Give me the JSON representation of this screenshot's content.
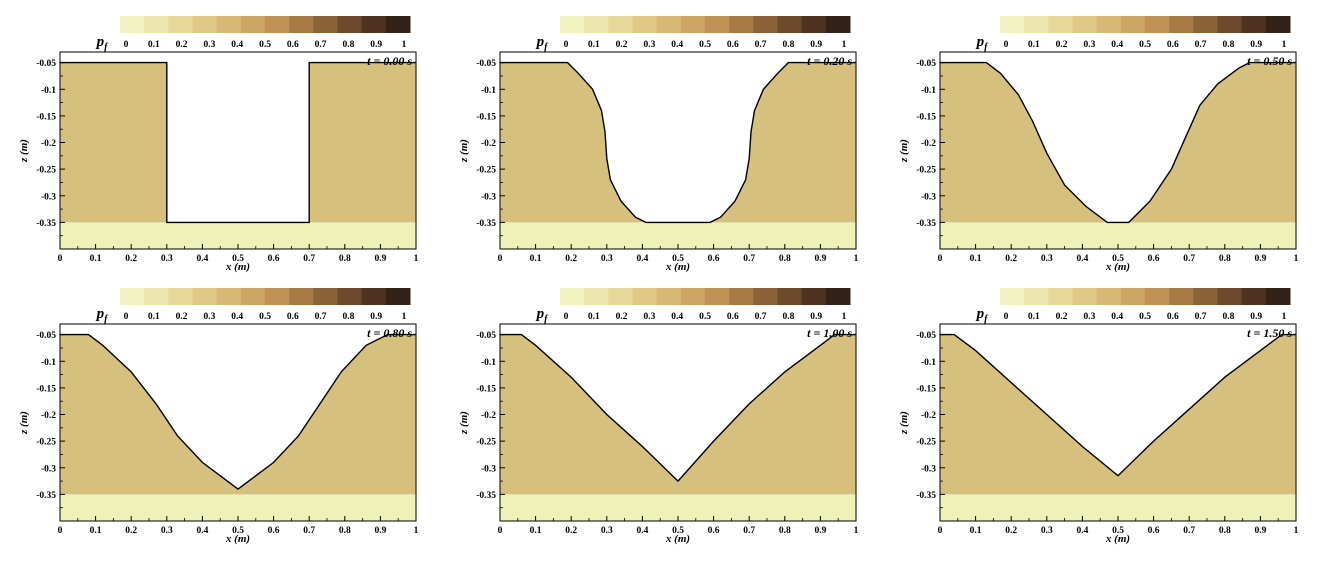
{
  "figure": {
    "colorbar": {
      "label_main": "p",
      "label_sub": "f",
      "ticks": [
        "0",
        "0.1",
        "0.2",
        "0.3",
        "0.4",
        "0.5",
        "0.6",
        "0.7",
        "0.8",
        "0.9",
        "1"
      ],
      "colors": [
        "#f1f4c0",
        "#ede6ae",
        "#e7d79a",
        "#e0c887",
        "#d8b875",
        "#cea664",
        "#c09255",
        "#a77a45",
        "#8c6238",
        "#6d4a2b",
        "#4f3320",
        "#332218"
      ]
    },
    "colors": {
      "sediment": "#d6c07e",
      "bed_layer": "#eef2b8",
      "outline": "#000000",
      "background": "#ffffff"
    }
  },
  "chart_data": [
    {
      "type": "area",
      "time_label": "t = 0.00 s",
      "xlabel": "x (m)",
      "ylabel": "z (m)",
      "xlim": [
        0,
        1
      ],
      "ylim": [
        -0.4,
        -0.03
      ],
      "xticks": [
        "0",
        "0.1",
        "0.2",
        "0.3",
        "0.4",
        "0.5",
        "0.6",
        "0.7",
        "0.8",
        "0.9",
        "1"
      ],
      "yticks": [
        "-0.05",
        "-0.1",
        "-0.15",
        "-0.2",
        "-0.25",
        "-0.3",
        "-0.35"
      ],
      "bed_layer_top": -0.35,
      "profile": [
        [
          0,
          -0.05
        ],
        [
          0.3,
          -0.05
        ],
        [
          0.3,
          -0.35
        ],
        [
          0.7,
          -0.35
        ],
        [
          0.7,
          -0.05
        ],
        [
          1,
          -0.05
        ]
      ]
    },
    {
      "type": "area",
      "time_label": "t = 0.20 s",
      "xlabel": "x (m)",
      "ylabel": "z (m)",
      "xlim": [
        0,
        1
      ],
      "ylim": [
        -0.4,
        -0.03
      ],
      "xticks": [
        "0",
        "0.1",
        "0.2",
        "0.3",
        "0.4",
        "0.5",
        "0.6",
        "0.7",
        "0.8",
        "0.9",
        "1"
      ],
      "yticks": [
        "-0.05",
        "-0.1",
        "-0.15",
        "-0.2",
        "-0.25",
        "-0.3",
        "-0.35"
      ],
      "bed_layer_top": -0.35,
      "profile": [
        [
          0,
          -0.05
        ],
        [
          0.19,
          -0.05
        ],
        [
          0.22,
          -0.07
        ],
        [
          0.26,
          -0.1
        ],
        [
          0.285,
          -0.14
        ],
        [
          0.295,
          -0.18
        ],
        [
          0.3,
          -0.23
        ],
        [
          0.31,
          -0.27
        ],
        [
          0.34,
          -0.31
        ],
        [
          0.38,
          -0.34
        ],
        [
          0.41,
          -0.35
        ],
        [
          0.59,
          -0.35
        ],
        [
          0.62,
          -0.34
        ],
        [
          0.66,
          -0.31
        ],
        [
          0.69,
          -0.27
        ],
        [
          0.7,
          -0.23
        ],
        [
          0.705,
          -0.18
        ],
        [
          0.715,
          -0.14
        ],
        [
          0.74,
          -0.1
        ],
        [
          0.78,
          -0.07
        ],
        [
          0.81,
          -0.05
        ],
        [
          1,
          -0.05
        ]
      ]
    },
    {
      "type": "area",
      "time_label": "t = 0.50 s",
      "xlabel": "x (m)",
      "ylabel": "z (m)",
      "xlim": [
        0,
        1
      ],
      "ylim": [
        -0.4,
        -0.03
      ],
      "xticks": [
        "0",
        "0.1",
        "0.2",
        "0.3",
        "0.4",
        "0.5",
        "0.6",
        "0.7",
        "0.8",
        "0.9",
        "1"
      ],
      "yticks": [
        "-0.05",
        "-0.1",
        "-0.15",
        "-0.2",
        "-0.25",
        "-0.3",
        "-0.35"
      ],
      "bed_layer_top": -0.35,
      "profile": [
        [
          0,
          -0.05
        ],
        [
          0.13,
          -0.05
        ],
        [
          0.17,
          -0.07
        ],
        [
          0.22,
          -0.11
        ],
        [
          0.26,
          -0.16
        ],
        [
          0.3,
          -0.22
        ],
        [
          0.35,
          -0.28
        ],
        [
          0.41,
          -0.32
        ],
        [
          0.47,
          -0.35
        ],
        [
          0.53,
          -0.35
        ],
        [
          0.59,
          -0.31
        ],
        [
          0.65,
          -0.25
        ],
        [
          0.69,
          -0.19
        ],
        [
          0.73,
          -0.13
        ],
        [
          0.78,
          -0.09
        ],
        [
          0.84,
          -0.06
        ],
        [
          0.87,
          -0.05
        ],
        [
          1,
          -0.05
        ]
      ]
    },
    {
      "type": "area",
      "time_label": "t = 0.80 s",
      "xlabel": "x (m)",
      "ylabel": "z (m)",
      "xlim": [
        0,
        1
      ],
      "ylim": [
        -0.4,
        -0.03
      ],
      "xticks": [
        "0",
        "0.1",
        "0.2",
        "0.3",
        "0.4",
        "0.5",
        "0.6",
        "0.7",
        "0.8",
        "0.9",
        "1"
      ],
      "yticks": [
        "-0.05",
        "-0.1",
        "-0.15",
        "-0.2",
        "-0.25",
        "-0.3",
        "-0.35"
      ],
      "bed_layer_top": -0.35,
      "profile": [
        [
          0,
          -0.05
        ],
        [
          0.08,
          -0.05
        ],
        [
          0.12,
          -0.07
        ],
        [
          0.2,
          -0.12
        ],
        [
          0.27,
          -0.18
        ],
        [
          0.33,
          -0.24
        ],
        [
          0.4,
          -0.29
        ],
        [
          0.5,
          -0.34
        ],
        [
          0.6,
          -0.29
        ],
        [
          0.67,
          -0.24
        ],
        [
          0.73,
          -0.18
        ],
        [
          0.79,
          -0.12
        ],
        [
          0.86,
          -0.07
        ],
        [
          0.92,
          -0.05
        ],
        [
          1,
          -0.05
        ]
      ]
    },
    {
      "type": "area",
      "time_label": "t = 1.00 s",
      "xlabel": "x (m)",
      "ylabel": "z (m)",
      "xlim": [
        0,
        1
      ],
      "ylim": [
        -0.4,
        -0.03
      ],
      "xticks": [
        "0",
        "0.1",
        "0.2",
        "0.3",
        "0.4",
        "0.5",
        "0.6",
        "0.7",
        "0.8",
        "0.9",
        "1"
      ],
      "yticks": [
        "-0.05",
        "-0.1",
        "-0.15",
        "-0.2",
        "-0.25",
        "-0.3",
        "-0.35"
      ],
      "bed_layer_top": -0.35,
      "profile": [
        [
          0,
          -0.05
        ],
        [
          0.06,
          -0.05
        ],
        [
          0.1,
          -0.07
        ],
        [
          0.2,
          -0.13
        ],
        [
          0.3,
          -0.2
        ],
        [
          0.4,
          -0.26
        ],
        [
          0.5,
          -0.325
        ],
        [
          0.6,
          -0.25
        ],
        [
          0.7,
          -0.18
        ],
        [
          0.8,
          -0.12
        ],
        [
          0.9,
          -0.07
        ],
        [
          0.94,
          -0.05
        ],
        [
          1,
          -0.05
        ]
      ]
    },
    {
      "type": "area",
      "time_label": "t = 1.50 s",
      "xlabel": "x (m)",
      "ylabel": "z (m)",
      "xlim": [
        0,
        1
      ],
      "ylim": [
        -0.4,
        -0.03
      ],
      "xticks": [
        "0",
        "0.1",
        "0.2",
        "0.3",
        "0.4",
        "0.5",
        "0.6",
        "0.7",
        "0.8",
        "0.9",
        "1"
      ],
      "yticks": [
        "-0.05",
        "-0.1",
        "-0.15",
        "-0.2",
        "-0.25",
        "-0.3",
        "-0.35"
      ],
      "bed_layer_top": -0.35,
      "profile": [
        [
          0,
          -0.05
        ],
        [
          0.04,
          -0.05
        ],
        [
          0.1,
          -0.08
        ],
        [
          0.2,
          -0.14
        ],
        [
          0.3,
          -0.2
        ],
        [
          0.4,
          -0.26
        ],
        [
          0.5,
          -0.315
        ],
        [
          0.6,
          -0.25
        ],
        [
          0.7,
          -0.19
        ],
        [
          0.8,
          -0.13
        ],
        [
          0.9,
          -0.08
        ],
        [
          0.96,
          -0.05
        ],
        [
          1,
          -0.05
        ]
      ]
    }
  ]
}
